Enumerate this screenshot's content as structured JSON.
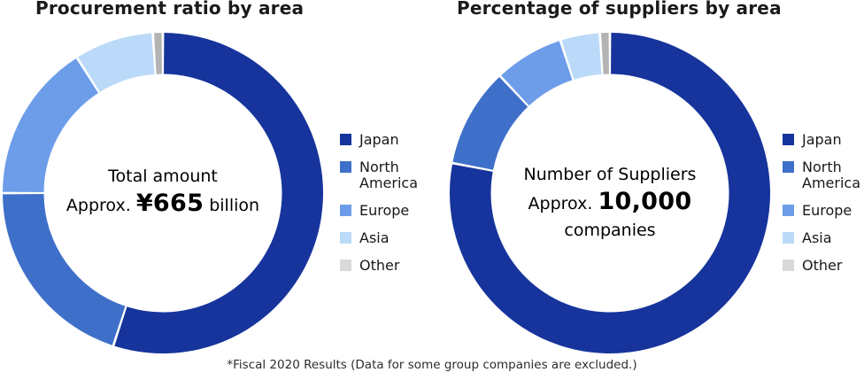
{
  "page": {
    "caption": "*Fiscal 2020 Results (Data for some group companies are excluded.)"
  },
  "chart_data": [
    {
      "type": "donut",
      "title": "Procurement ratio by area",
      "categories": [
        "Japan",
        "North America",
        "Europe",
        "Asia",
        "Other"
      ],
      "values": [
        55,
        20,
        16,
        8,
        1
      ],
      "unit": "percent",
      "start_angle_deg": 0,
      "direction": "clockwise",
      "legend_position": "right",
      "colors": [
        "#16349C",
        "#3F70C9",
        "#6D9DE9",
        "#BBDAF9",
        "#B3B3B3"
      ],
      "legend_colors": [
        "#16349C",
        "#3F70C9",
        "#6D9DE9",
        "#BBDAF9",
        "#D9D9D9"
      ],
      "center": {
        "line1": "Total amount",
        "prefix": "Approx. ",
        "value": "¥665",
        "suffix": " billion",
        "line3": ""
      }
    },
    {
      "type": "donut",
      "title": "Percentage of suppliers by area",
      "categories": [
        "Japan",
        "North America",
        "Europe",
        "Asia",
        "Other"
      ],
      "values": [
        78,
        10,
        7,
        4,
        1
      ],
      "unit": "percent",
      "start_angle_deg": 0,
      "direction": "clockwise",
      "legend_position": "right",
      "colors": [
        "#16349C",
        "#3F70C9",
        "#6D9DE9",
        "#BBDAF9",
        "#B3B3B3"
      ],
      "legend_colors": [
        "#16349C",
        "#3F70C9",
        "#6D9DE9",
        "#BBDAF9",
        "#D9D9D9"
      ],
      "center": {
        "line1": "Number of Suppliers",
        "prefix": "Approx. ",
        "value": "10,000",
        "suffix": "",
        "line3": "companies"
      }
    }
  ]
}
